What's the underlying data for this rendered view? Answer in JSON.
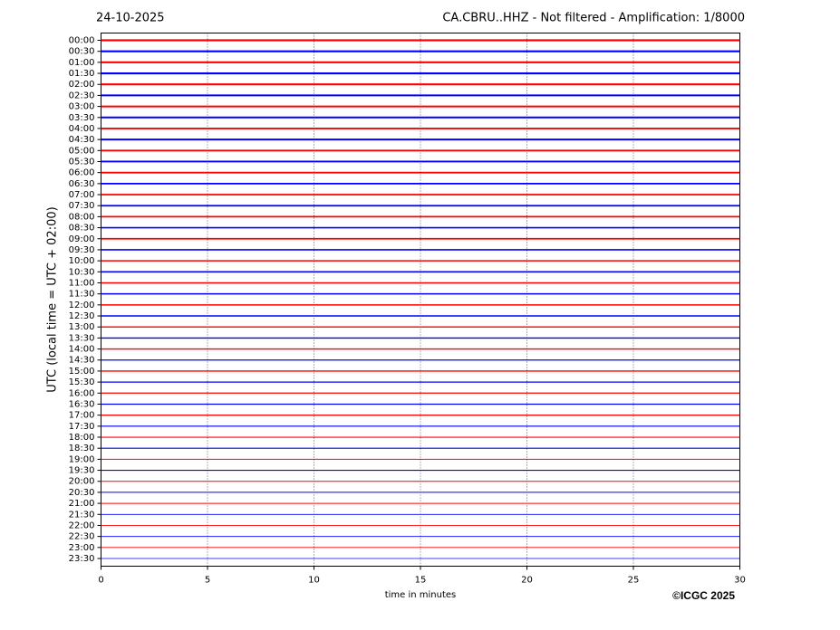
{
  "chart_data": {
    "type": "helicorder",
    "date": "24-10-2025",
    "title": "CA.CBRU..HHZ - Not filtered - Amplification: 1/8000",
    "ylabel": "UTC (local time = UTC + 02:00)",
    "xlabel": "time in minutes",
    "copyright": "©ICGC 2025",
    "categories": [
      "00:00",
      "00:30",
      "01:00",
      "01:30",
      "02:00",
      "02:30",
      "03:00",
      "03:30",
      "04:00",
      "04:30",
      "05:00",
      "05:30",
      "06:00",
      "06:30",
      "07:00",
      "07:30",
      "08:00",
      "08:30",
      "09:00",
      "09:30",
      "10:00",
      "10:30",
      "11:00",
      "11:30",
      "12:00",
      "12:30",
      "13:00",
      "13:30",
      "14:00",
      "14:30",
      "15:00",
      "15:30",
      "16:00",
      "16:30",
      "17:00",
      "17:30",
      "18:00",
      "18:30",
      "19:00",
      "19:30",
      "20:00",
      "20:30",
      "21:00",
      "21:30",
      "22:00",
      "22:30",
      "23:00",
      "23:30"
    ],
    "colors": [
      "#ff0000",
      "#0000ff"
    ],
    "xlim": [
      0,
      30
    ],
    "xticks": [
      0,
      5,
      10,
      15,
      20,
      25,
      30
    ],
    "grid": true
  }
}
